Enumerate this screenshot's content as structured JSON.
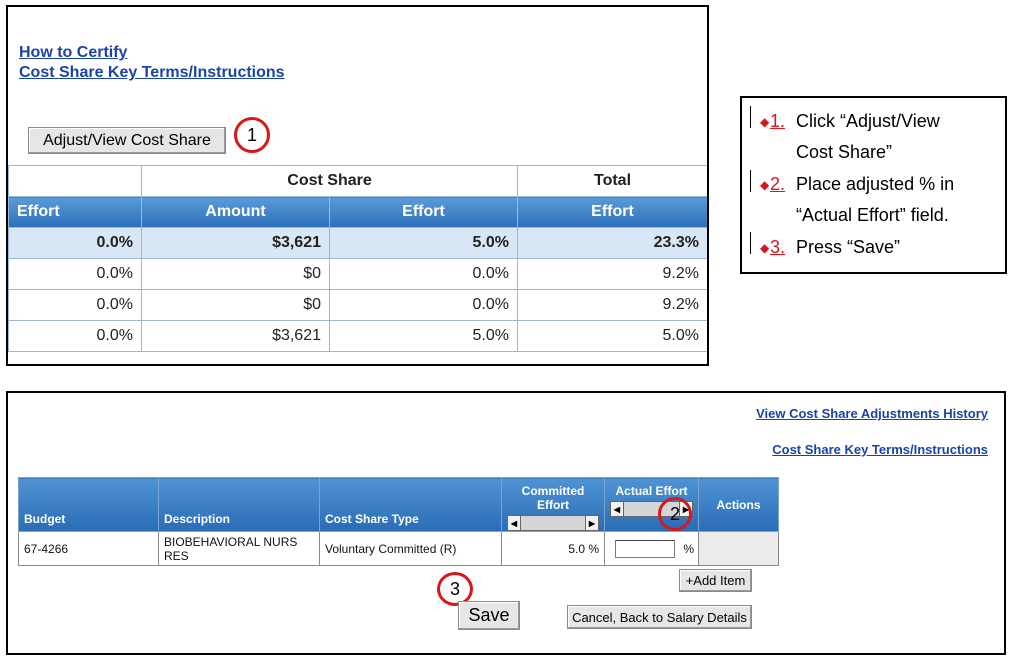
{
  "top": {
    "link_certify": "How to Certify",
    "link_terms": "Cost Share Key Terms/Instructions",
    "adjust_button": "Adjust/View Cost Share",
    "callout_1": "1",
    "group_cost_share": "Cost Share",
    "group_total": "Total",
    "headers": [
      "Effort",
      "Amount",
      "Effort",
      "Effort"
    ],
    "rows": [
      [
        "0.0%",
        "$3,621",
        "5.0%",
        "23.3%"
      ],
      [
        "0.0%",
        "$0",
        "0.0%",
        "9.2%"
      ],
      [
        "0.0%",
        "$0",
        "0.0%",
        "9.2%"
      ],
      [
        "0.0%",
        "$3,621",
        "5.0%",
        "5.0%"
      ]
    ]
  },
  "instructions": {
    "items": [
      {
        "num": "1.",
        "line1": "Click “Adjust/View",
        "line2": "Cost Share”"
      },
      {
        "num": "2.",
        "line1": "Place adjusted % in",
        "line2": "“Actual Effort” field."
      },
      {
        "num": "3.",
        "line1": "Press “Save”",
        "line2": ""
      }
    ]
  },
  "bottom": {
    "link_history": "View Cost Share Adjustments History",
    "link_terms": "Cost Share Key Terms/Instructions",
    "headers": {
      "budget": "Budget",
      "description": "Description",
      "type": "Cost Share Type",
      "committed": "Committed Effort",
      "actual": "Actual Effort",
      "actions": "Actions"
    },
    "row": {
      "budget": "67-4266",
      "description": "BIOBEHAVIORAL NURS RES",
      "type": "Voluntary Committed (R)",
      "committed": "5.0 %",
      "actual_value": "",
      "actual_unit": "%"
    },
    "callout_2": "2",
    "callout_3": "3",
    "add_item": "+Add Item",
    "save": "Save",
    "cancel": "Cancel, Back to Salary Details"
  },
  "colors": {
    "header_blue": "#2c6fb8",
    "link_blue": "#1a44a8",
    "callout_red": "#d81818",
    "selected_row": "#d8e6f5"
  }
}
